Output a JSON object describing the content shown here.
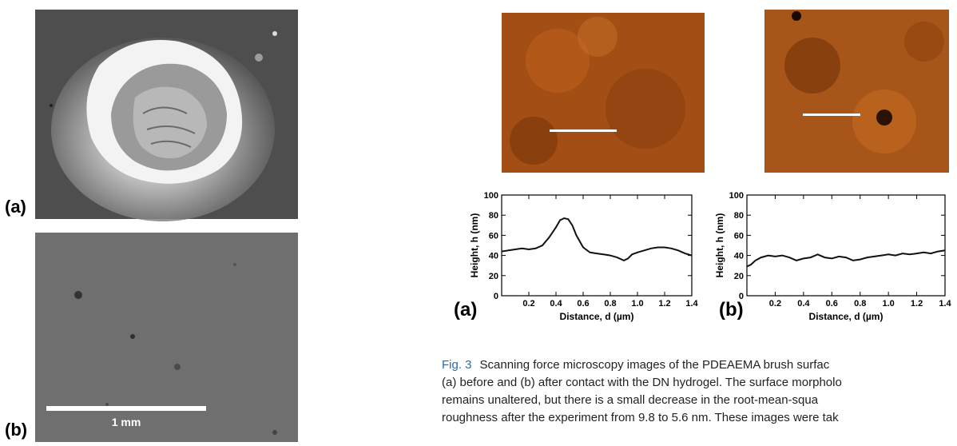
{
  "left_figure": {
    "panel_a_label": "(a)",
    "panel_b_label": "(b)",
    "scale_bar_label": "1 mm"
  },
  "right_figure": {
    "panel_a_label": "(a)",
    "panel_b_label": "(b)"
  },
  "caption": {
    "label": "Fig. 3",
    "lines": [
      "Scanning force microscopy images of the PDEAEMA brush surfac",
      "(a) before and (b) after contact with the DN hydrogel. The surface morpholo",
      "remains unaltered, but there is a small decrease in the root-mean-squa",
      "roughness after the experiment from 9.8 to 5.6 nm. These images were tak"
    ]
  },
  "chart_data": [
    {
      "type": "line",
      "panel": "(a)",
      "xlabel": "Distance, d (µm)",
      "ylabel": "Height, h (nm)",
      "xlim": [
        0,
        1.4
      ],
      "ylim": [
        0,
        100
      ],
      "xticks": [
        "0.2",
        "0.4",
        "0.6",
        "0.8",
        "1.0",
        "1.2",
        "1.4"
      ],
      "yticks": [
        "0",
        "20",
        "40",
        "60",
        "80",
        "100"
      ],
      "x": [
        0.0,
        0.05,
        0.1,
        0.15,
        0.2,
        0.25,
        0.3,
        0.35,
        0.4,
        0.43,
        0.46,
        0.49,
        0.52,
        0.55,
        0.6,
        0.65,
        0.7,
        0.75,
        0.8,
        0.85,
        0.9,
        0.93,
        0.96,
        1.0,
        1.05,
        1.1,
        1.15,
        1.2,
        1.25,
        1.3,
        1.35,
        1.4
      ],
      "y": [
        44,
        45,
        46,
        47,
        46,
        47,
        50,
        58,
        68,
        75,
        77,
        76,
        70,
        60,
        48,
        43,
        42,
        41,
        40,
        38,
        35,
        37,
        41,
        43,
        45,
        47,
        48,
        48,
        47,
        45,
        42,
        40
      ]
    },
    {
      "type": "line",
      "panel": "(b)",
      "xlabel": "Distance, d (µm)",
      "ylabel": "Height, h (nm)",
      "xlim": [
        0,
        1.4
      ],
      "ylim": [
        0,
        100
      ],
      "xticks": [
        "0.2",
        "0.4",
        "0.6",
        "0.8",
        "1.0",
        "1.2",
        "1.4"
      ],
      "yticks": [
        "0",
        "20",
        "40",
        "60",
        "80",
        "100"
      ],
      "x": [
        0.0,
        0.03,
        0.06,
        0.1,
        0.15,
        0.2,
        0.25,
        0.3,
        0.35,
        0.4,
        0.45,
        0.5,
        0.55,
        0.6,
        0.65,
        0.7,
        0.75,
        0.8,
        0.85,
        0.9,
        0.95,
        1.0,
        1.05,
        1.1,
        1.15,
        1.2,
        1.25,
        1.3,
        1.35,
        1.4
      ],
      "y": [
        29,
        31,
        35,
        38,
        40,
        39,
        40,
        38,
        35,
        37,
        38,
        41,
        38,
        37,
        39,
        38,
        35,
        36,
        38,
        39,
        40,
        41,
        40,
        42,
        41,
        42,
        43,
        42,
        44,
        45
      ]
    }
  ]
}
